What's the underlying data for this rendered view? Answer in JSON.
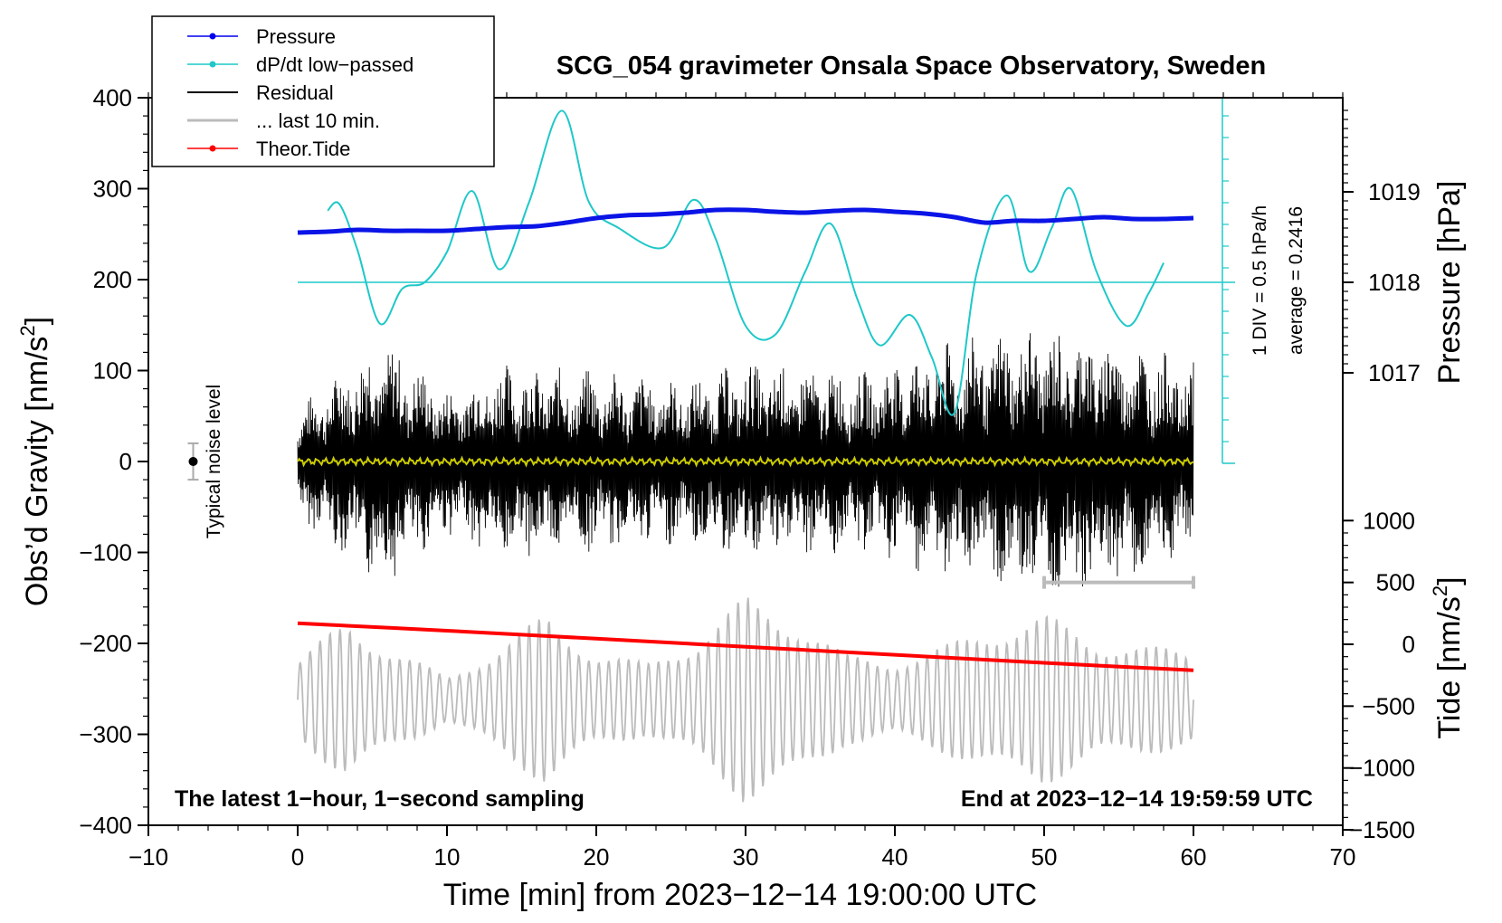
{
  "chart_data": {
    "type": "line",
    "title": "SCG_054 gravimeter Onsala Space Observatory, Sweden",
    "xlabel": "Time [min] from 2023−12−14 19:00:00 UTC",
    "ylabel_left": "Obs’d Gravity [nm/s",
    "ylabel_left_sup": "2",
    "ylabel_left_end": "]",
    "ylabel_right_pressure": "Pressure [hPa]",
    "ylabel_right_tide": "Tide [nm/s",
    "ylabel_right_tide_sup": "2",
    "ylabel_right_tide_end": "]",
    "xlim": [
      -10,
      70
    ],
    "ylim_gravity": [
      -400,
      400
    ],
    "x_ticks": [
      "−10",
      "0",
      "10",
      "20",
      "30",
      "40",
      "50",
      "60",
      "70"
    ],
    "x_tick_values": [
      -10,
      0,
      10,
      20,
      30,
      40,
      50,
      60,
      70
    ],
    "gravity_ticks": [
      "400",
      "300",
      "200",
      "100",
      "0",
      "−100",
      "−200",
      "−300",
      "−400"
    ],
    "gravity_tick_values": [
      400,
      300,
      200,
      100,
      0,
      -100,
      -200,
      -300,
      -400
    ],
    "pressure_ticks": [
      "1019",
      "1018",
      "1017"
    ],
    "pressure_tick_values": [
      1019,
      1018,
      1017
    ],
    "tide_ticks": [
      "1000",
      "500",
      "0",
      "−500",
      "−1000",
      "−1500"
    ],
    "tide_tick_values": [
      1000,
      500,
      0,
      -500,
      -1000,
      -1500
    ],
    "legend": [
      {
        "label": "Pressure",
        "color": "#0000ee",
        "marker": true
      },
      {
        "label": "dP/dt low−passed",
        "color": "#1ec8c8",
        "marker": true
      },
      {
        "label": "Residual",
        "color": "#000000",
        "marker": false
      },
      {
        "label": "... last 10 min.",
        "color": "#bbbbbb",
        "marker": false
      },
      {
        "label": "Theor.Tide",
        "color": "#ff0000",
        "marker": true
      }
    ],
    "series": [
      {
        "name": "Pressure",
        "unit": "hPa",
        "x": [
          0,
          2,
          4,
          6,
          8,
          10,
          12,
          14,
          16,
          18,
          20,
          22,
          24,
          26,
          28,
          30,
          32,
          34,
          36,
          38,
          40,
          42,
          44,
          46,
          48,
          50,
          52,
          54,
          56,
          58,
          60
        ],
        "values": [
          1018.55,
          1018.56,
          1018.58,
          1018.57,
          1018.57,
          1018.57,
          1018.59,
          1018.61,
          1018.62,
          1018.66,
          1018.71,
          1018.74,
          1018.75,
          1018.77,
          1018.8,
          1018.8,
          1018.78,
          1018.77,
          1018.79,
          1018.8,
          1018.78,
          1018.76,
          1018.72,
          1018.66,
          1018.68,
          1018.68,
          1018.7,
          1018.72,
          1018.7,
          1018.7,
          1018.71
        ]
      },
      {
        "name": "dP/dt low-passed",
        "unit": "DIV (1 DIV = 0.5 hPa/h), 0 = average",
        "x": [
          2,
          2.8,
          4,
          5.5,
          7,
          8.5,
          10,
          11.7,
          13.5,
          15.5,
          17.7,
          19.5,
          21.5,
          24.5,
          26.5,
          28,
          30,
          32,
          34,
          35.7,
          37.5,
          39,
          41,
          42.5,
          44,
          45.5,
          47.5,
          49,
          50.5,
          51.8,
          53.5,
          55.5,
          57,
          58
        ],
        "values": [
          3.3,
          3.6,
          1.5,
          -1.9,
          -0.3,
          0,
          1.4,
          4.2,
          0.6,
          3.7,
          7.9,
          3.7,
          2.5,
          1.6,
          3.8,
          2.0,
          -2.0,
          -2.4,
          0.5,
          2.7,
          -0.8,
          -2.9,
          -1.5,
          -3.5,
          -6.0,
          0.5,
          4.0,
          0.5,
          2.5,
          4.3,
          0.5,
          -2.0,
          -0.5,
          0.9
        ]
      },
      {
        "name": "Residual",
        "unit": "nm/s2",
        "x": [
          0,
          5.5,
          10,
          13.5,
          20,
          26,
          30,
          38,
          43,
          49,
          55,
          60
        ],
        "amplitude": [
          60,
          140,
          80,
          110,
          100,
          90,
          110,
          100,
          130,
          150,
          140,
          110
        ]
      },
      {
        "name": "Theor.Tide",
        "unit": "nm/s2",
        "x": [
          0,
          10,
          20,
          30,
          40,
          50,
          60
        ],
        "values": [
          170,
          110,
          45,
          -20,
          -85,
          -150,
          -210
        ]
      },
      {
        "name": "... last 10 min.",
        "unit": "nm/s2",
        "x_range": [
          0,
          60
        ],
        "baseline": -262,
        "amplitude": [
          45,
          90,
          55,
          25,
          60,
          95,
          55,
          40,
          70,
          115,
          95,
          50,
          45,
          60,
          85,
          95,
          70,
          60,
          55
        ]
      }
    ],
    "pressure_divider_label": "1 DIV = 0.5 hPa/h",
    "average_label": "average = 0.2416",
    "noise_label": "Typical noise level",
    "noise_level": {
      "x": -7,
      "y": 0,
      "halfwidth": 20
    },
    "ten_minute_bar": {
      "from": 50,
      "to": 60,
      "y": -133
    },
    "footer_left": "The latest 1−hour, 1−second sampling",
    "footer_right": "End at 2023−12−14 19:59:59 UTC",
    "zero_line_color": "#cccc00"
  }
}
